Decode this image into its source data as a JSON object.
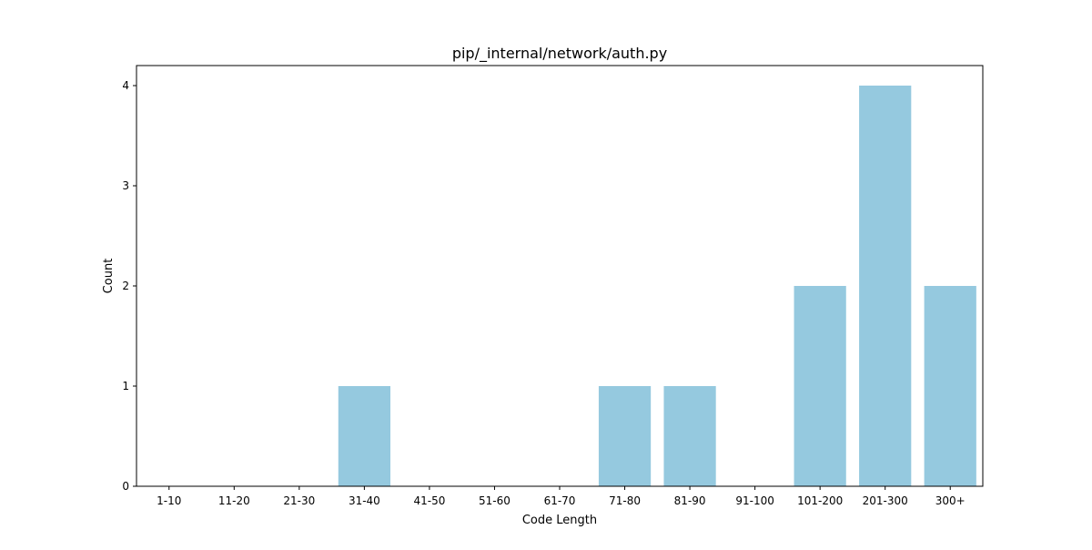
{
  "chart_data": {
    "type": "bar",
    "title": "pip/_internal/network/auth.py",
    "xlabel": "Code Length",
    "ylabel": "Count",
    "categories": [
      "1-10",
      "11-20",
      "21-30",
      "31-40",
      "41-50",
      "51-60",
      "61-70",
      "71-80",
      "81-90",
      "91-100",
      "101-200",
      "201-300",
      "300+"
    ],
    "values": [
      0,
      0,
      0,
      1,
      0,
      0,
      0,
      1,
      1,
      0,
      2,
      4,
      2
    ],
    "ylim": [
      0,
      4.2
    ],
    "yticks": [
      0,
      1,
      2,
      3,
      4
    ],
    "grid": false,
    "legend": false,
    "colors": {
      "bar": "#95c9df"
    }
  }
}
